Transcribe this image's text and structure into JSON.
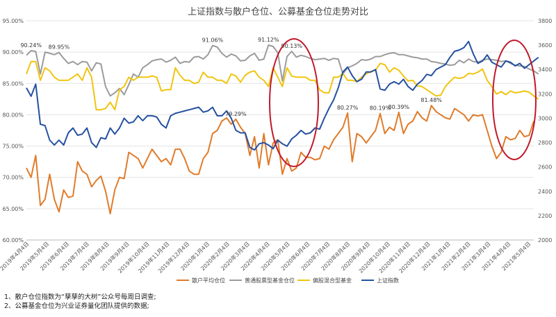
{
  "chart_data": {
    "type": "line",
    "title": "上证指数与散户仓位、公募基金仓位走势对比",
    "left_axis": {
      "min": 60,
      "max": 95,
      "step": 5,
      "tick_labels": [
        "60.00%",
        "65.00%",
        "70.00%",
        "75.00%",
        "80.00%",
        "85.00%",
        "90.00%",
        "95.00%"
      ]
    },
    "right_axis": {
      "min": 2000,
      "max": 3800,
      "step": 200,
      "tick_labels": [
        "2000",
        "2200",
        "2400",
        "2600",
        "2800",
        "3000",
        "3200",
        "3400",
        "3600",
        "3800"
      ]
    },
    "x_labels": [
      "2019年4月4日",
      "2019年5月4日",
      "2019年6月4日",
      "2019年7月4日",
      "2019年8月4日",
      "2019年9月4日",
      "2019年10月4日",
      "2019年11月4日",
      "2019年12月4日",
      "2020年1月4日",
      "2020年2月4日",
      "2020年3月4日",
      "2020年4月4日",
      "2020年5月4日",
      "2020年6月4日",
      "2020年7月4日",
      "2020年8月4日",
      "2020年9月4日",
      "2020年10月4日",
      "2020年11月4日",
      "2020年12月4日",
      "2021年1月4日",
      "2021年2月4日",
      "2021年3月4日",
      "2021年4月4日",
      "2021年5月4日"
    ],
    "series": [
      {
        "name": "散户平均仓位",
        "axis": "left",
        "color": "#E07B2A",
        "values": [
          71.5,
          70,
          73.5,
          65.5,
          66.5,
          70.5,
          66.5,
          64.5,
          68,
          66.8,
          67,
          72.5,
          71,
          70.5,
          68.5,
          69.5,
          70.2,
          67.8,
          64.2,
          68,
          70,
          69.8,
          74,
          73.5,
          73,
          71.5,
          73,
          74.5,
          73.5,
          72.5,
          73,
          72,
          74.5,
          74.5,
          73,
          71,
          70.5,
          70.5,
          73,
          74,
          77,
          77.5,
          79,
          79.5,
          78.5,
          79.29,
          78,
          77,
          73.5,
          76.5,
          71.5,
          77,
          72,
          75.5,
          76,
          70.5,
          73,
          71,
          71.5,
          74,
          73.2,
          73.2,
          72.8,
          73,
          75,
          74.5,
          76,
          77,
          78,
          80.27,
          72.5,
          77,
          76.5,
          75.5,
          76.5,
          77.5,
          80.19,
          77,
          78,
          77.5,
          80.39,
          77,
          78.5,
          79,
          80.5,
          79.5,
          79,
          81.48,
          80.5,
          80,
          79.5,
          79.3,
          81,
          80.5,
          80,
          79,
          80,
          79.8,
          80,
          77.5,
          75,
          73,
          74,
          76.5,
          76,
          76.2,
          77.5,
          76.5,
          76.7,
          79
        ]
      },
      {
        "name": "普通股票型基金仓位",
        "axis": "left",
        "color": "#9B9B9B",
        "values": [
          89.5,
          90.24,
          90.1,
          86.5,
          90,
          89.8,
          89.6,
          89.95,
          89,
          88.2,
          88.5,
          88,
          88.5,
          88.4,
          87,
          88.3,
          88.1,
          84.5,
          83,
          83.5,
          84.2,
          83.2,
          84.8,
          86.5,
          86,
          87.5,
          88,
          88.6,
          88.8,
          88.9,
          88.4,
          88.7,
          89.2,
          88.2,
          88.5,
          88.4,
          89.2,
          89.3,
          88.9,
          89.6,
          91.06,
          90.8,
          89.8,
          89.2,
          89.7,
          89.4,
          88.6,
          88.7,
          89.4,
          89.8,
          88.7,
          88.9,
          91.12,
          90.9,
          89.9,
          85.4,
          89.3,
          90.13,
          89.2,
          89.5,
          89.3,
          89,
          88.8,
          88.9,
          89,
          88.7,
          89,
          88.9,
          86.5,
          87.5,
          87.8,
          88.2,
          88.8,
          88.7,
          88.9,
          89.3,
          89.3,
          89.6,
          89.8,
          89.9,
          89.6,
          89.6,
          89.4,
          89.2,
          89.1,
          88.9,
          88.9,
          88.5,
          88.4,
          88.2,
          88.1,
          87.9,
          88,
          88.7,
          88.3,
          88.9,
          88.5,
          88.4,
          88.7,
          88.9,
          88.8,
          88.7,
          88.5,
          88.6,
          88.2,
          87.9,
          87.8,
          87.7,
          87.3,
          87,
          86.5
        ]
      },
      {
        "name": "偏股混合型基金",
        "axis": "left",
        "color": "#F1C40F",
        "values": [
          86.5,
          88.5,
          88.5,
          85.5,
          87.5,
          87,
          86,
          85.5,
          85.5,
          85.5,
          86,
          86.5,
          85.5,
          87.5,
          86,
          80.8,
          80.8,
          81,
          82,
          80.8,
          84,
          84.5,
          86,
          85.5,
          86,
          86,
          86,
          86.2,
          86,
          83.8,
          84,
          84,
          87.5,
          86.3,
          85.5,
          85.5,
          85,
          85.2,
          86.8,
          86,
          86,
          85.5,
          85.5,
          85,
          86.5,
          86.2,
          85.2,
          86.3,
          86.8,
          87,
          86,
          85.5,
          84.5,
          87.5,
          86,
          84.5,
          87.5,
          86.2,
          86,
          86,
          86,
          85.5,
          85.5,
          84,
          83.5,
          83.5,
          86,
          86,
          86.6,
          85.5,
          85.5,
          85.3,
          86,
          86.5,
          86.9,
          87.1,
          88.2,
          88,
          86.8,
          87.5,
          87.1,
          86.2,
          85.4,
          85.5,
          84.6,
          84.5,
          84,
          83.5,
          83,
          83.1,
          84.5,
          85.3,
          86,
          85.8,
          86,
          86.6,
          86.5,
          86.8,
          87.3,
          85.5,
          84.5,
          83.3,
          83.7,
          83.2,
          83.8,
          83.5,
          83.6,
          83.8,
          83.6,
          83,
          82.5
        ]
      },
      {
        "name": "上证指数",
        "axis": "right",
        "color": "#2450A0",
        "values": [
          3250,
          3180,
          3280,
          2950,
          2940,
          2820,
          2780,
          2820,
          2780,
          2880,
          2920,
          2860,
          2870,
          2920,
          2800,
          2760,
          2840,
          2830,
          2920,
          2870,
          2920,
          3000,
          2960,
          2970,
          3020,
          2980,
          3020,
          3020,
          3010,
          2950,
          2920,
          3020,
          3040,
          3050,
          3060,
          3070,
          3080,
          3090,
          3050,
          3060,
          3090,
          3020,
          3020,
          3060,
          3000,
          2900,
          2880,
          2880,
          2760,
          2740,
          2790,
          2800,
          2780,
          2750,
          2820,
          2790,
          2770,
          2830,
          2860,
          2900,
          2870,
          2880,
          2920,
          2910,
          3000,
          3080,
          3150,
          3250,
          3380,
          3420,
          3350,
          3300,
          3320,
          3380,
          3380,
          3400,
          3240,
          3230,
          3280,
          3300,
          3280,
          3320,
          3260,
          3230,
          3280,
          3310,
          3360,
          3350,
          3400,
          3420,
          3440,
          3500,
          3550,
          3560,
          3580,
          3630,
          3530,
          3450,
          3470,
          3520,
          3460,
          3440,
          3420,
          3470,
          3460,
          3430,
          3450,
          3410,
          3440,
          3470,
          3500
        ]
      }
    ],
    "annotations": [
      "90.24%",
      "89.95%",
      "91.06%",
      "79.29%",
      "91.12%",
      "90.13%",
      "80.27%",
      "80.19%",
      "80.39%",
      "81.48%"
    ],
    "legend_position": "bottom",
    "grid": true
  },
  "notes": [
    "1、散户仓位指数为“孳孳的大树”公众号每周日调查;",
    "2、公募基金仓位为兴业证券量化团队提供的数据;"
  ]
}
